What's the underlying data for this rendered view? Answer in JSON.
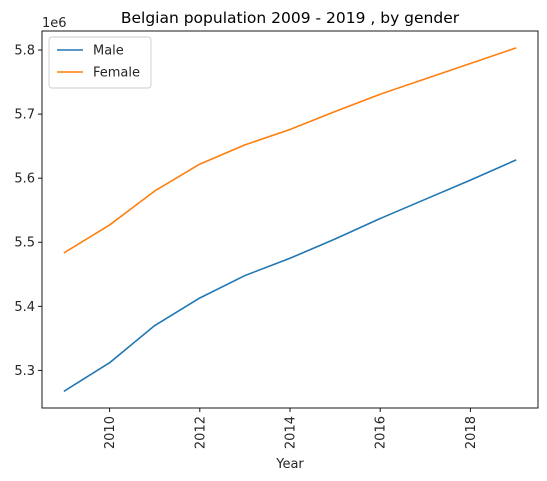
{
  "chart_data": {
    "type": "line",
    "title": "Belgian population 2009 - 2019 , by gender",
    "xlabel": "Year",
    "ylabel": "",
    "y_offset_label": "1e6",
    "x": [
      2009,
      2010,
      2011,
      2012,
      2013,
      2014,
      2015,
      2016,
      2017,
      2018,
      2019
    ],
    "series": [
      {
        "name": "Male",
        "color": "#1f77b4",
        "values": [
          5.268,
          5.312,
          5.37,
          5.413,
          5.448,
          5.475,
          5.505,
          5.537,
          5.567,
          5.597,
          5.628
        ]
      },
      {
        "name": "Female",
        "color": "#ff7f0e",
        "values": [
          5.484,
          5.527,
          5.58,
          5.622,
          5.652,
          5.676,
          5.704,
          5.731,
          5.755,
          5.779,
          5.803
        ]
      }
    ],
    "x_ticks": [
      2010,
      2012,
      2014,
      2016,
      2018
    ],
    "y_ticks": [
      5.3,
      5.4,
      5.5,
      5.6,
      5.7,
      5.8
    ],
    "xlim": [
      2008.5,
      2019.5
    ],
    "ylim": [
      5.2413,
      5.8297
    ],
    "grid": false,
    "legend_position": "top-left"
  }
}
